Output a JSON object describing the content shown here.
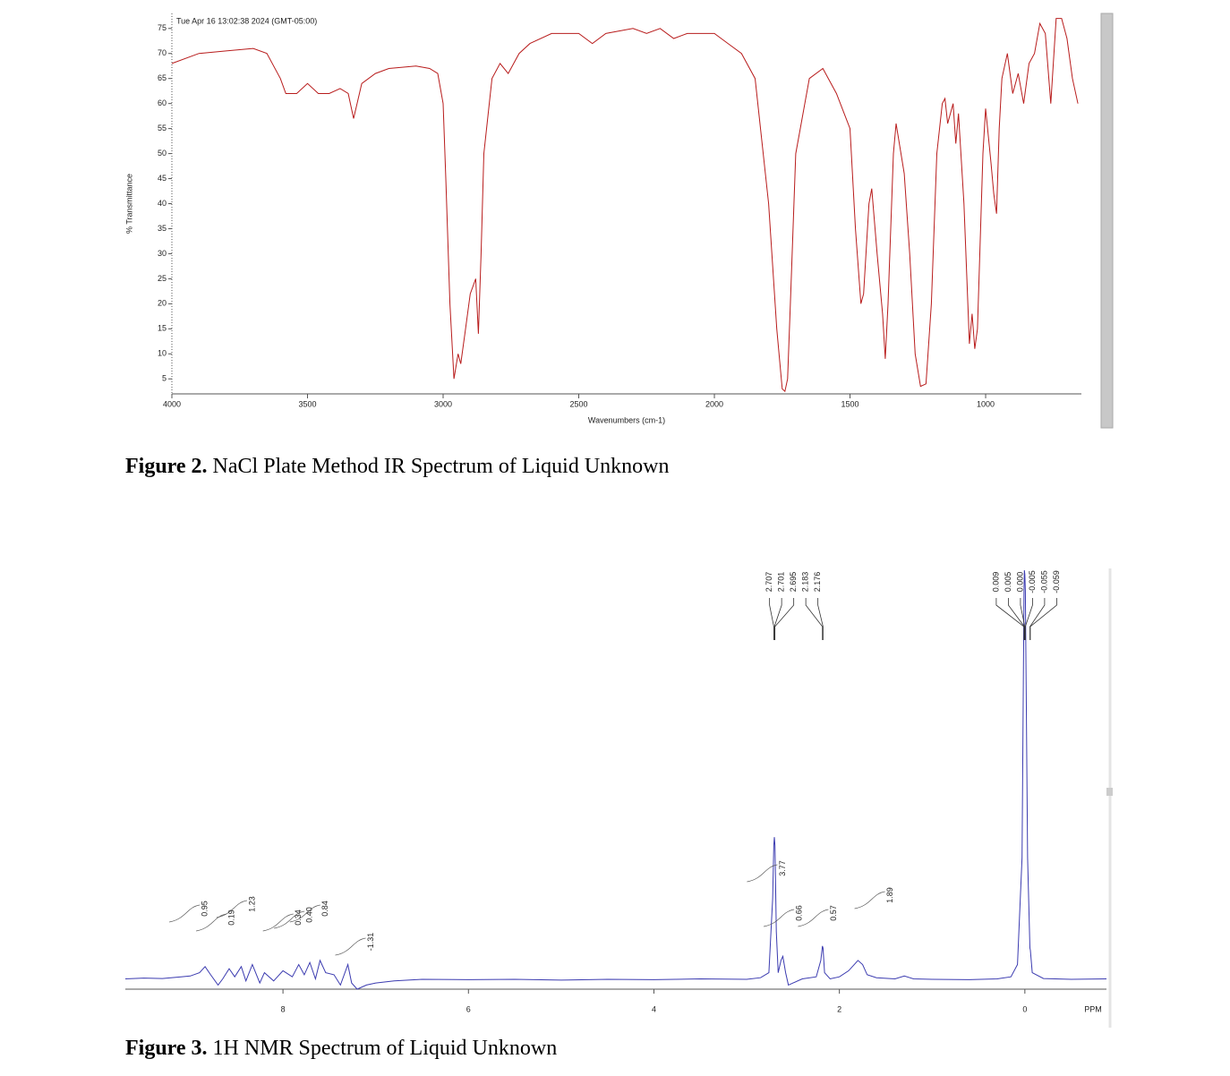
{
  "chart_data": [
    {
      "type": "line",
      "annotation": "Tue Apr 16 13:02:38 2024 (GMT-05:00)",
      "xlabel": "Wavenumbers (cm-1)",
      "ylabel": "% Transmittance",
      "xlim": [
        4000,
        647
      ],
      "ylim": [
        2,
        78
      ],
      "xticks": [
        4000,
        3500,
        3000,
        2500,
        2000,
        1500,
        1000
      ],
      "yticks": [
        5,
        10,
        15,
        20,
        25,
        30,
        35,
        40,
        45,
        50,
        55,
        60,
        65,
        70,
        75
      ],
      "color": "#b81c1c",
      "x": [
        4000,
        3900,
        3800,
        3700,
        3650,
        3600,
        3580,
        3540,
        3500,
        3460,
        3420,
        3380,
        3350,
        3330,
        3300,
        3250,
        3200,
        3100,
        3050,
        3020,
        3000,
        2990,
        2975,
        2960,
        2945,
        2935,
        2920,
        2900,
        2880,
        2870,
        2860,
        2850,
        2820,
        2790,
        2760,
        2720,
        2680,
        2600,
        2500,
        2450,
        2400,
        2300,
        2250,
        2200,
        2150,
        2100,
        2050,
        2000,
        1950,
        1900,
        1850,
        1800,
        1770,
        1750,
        1740,
        1730,
        1720,
        1700,
        1680,
        1650,
        1600,
        1550,
        1500,
        1480,
        1460,
        1450,
        1430,
        1420,
        1400,
        1380,
        1370,
        1360,
        1340,
        1330,
        1300,
        1280,
        1260,
        1240,
        1220,
        1200,
        1180,
        1160,
        1150,
        1140,
        1120,
        1110,
        1100,
        1080,
        1060,
        1050,
        1040,
        1030,
        1010,
        1000,
        980,
        970,
        960,
        950,
        940,
        920,
        900,
        880,
        860,
        840,
        820,
        800,
        780,
        760,
        740,
        720,
        700,
        680,
        660
      ],
      "values": [
        68,
        70,
        70.5,
        71,
        70,
        65,
        62,
        62,
        64,
        62,
        62,
        63,
        62,
        57,
        64,
        66,
        67,
        67.5,
        67,
        66,
        60,
        45,
        20,
        5,
        10,
        8,
        14,
        22,
        25,
        14,
        30,
        50,
        65,
        68,
        66,
        70,
        72,
        74,
        74,
        72,
        74,
        75,
        74,
        75,
        73,
        74,
        74,
        74,
        72,
        70,
        65,
        40,
        15,
        3,
        2.5,
        5,
        20,
        50,
        56,
        65,
        67,
        62,
        55,
        35,
        20,
        22,
        40,
        43,
        30,
        18,
        9,
        20,
        50,
        56,
        46,
        30,
        10,
        3.5,
        4,
        20,
        50,
        60,
        61,
        56,
        60,
        52,
        58,
        40,
        12,
        18,
        11,
        15,
        50,
        59,
        48,
        42,
        38,
        55,
        65,
        70,
        62,
        66,
        60,
        68,
        70,
        76,
        74,
        60,
        77,
        77,
        73,
        65,
        60
      ]
    },
    {
      "type": "line",
      "xlabel": "PPM",
      "xlim": [
        9.7,
        -0.88
      ],
      "ylim": [
        -0.02,
        1.0
      ],
      "xticks": [
        8,
        6,
        4,
        2,
        0
      ],
      "color": "#3b3bb0",
      "x": [
        9.7,
        9.5,
        9.3,
        9.1,
        9.0,
        8.9,
        8.84,
        8.78,
        8.7,
        8.65,
        8.58,
        8.52,
        8.45,
        8.4,
        8.33,
        8.25,
        8.2,
        8.1,
        8.0,
        7.9,
        7.83,
        7.77,
        7.71,
        7.65,
        7.6,
        7.54,
        7.45,
        7.38,
        7.3,
        7.26,
        7.2,
        7.1,
        7.0,
        6.8,
        6.5,
        6.0,
        5.5,
        5.0,
        4.5,
        4.0,
        3.5,
        3.0,
        2.85,
        2.76,
        2.72,
        2.707,
        2.701,
        2.695,
        2.68,
        2.66,
        2.63,
        2.61,
        2.58,
        2.55,
        2.5,
        2.4,
        2.25,
        2.2,
        2.183,
        2.176,
        2.16,
        2.1,
        2.0,
        1.9,
        1.8,
        1.75,
        1.7,
        1.6,
        1.4,
        1.3,
        1.2,
        1.0,
        0.6,
        0.3,
        0.15,
        0.08,
        0.03,
        0.009,
        0.005,
        0.0,
        -0.005,
        -0.03,
        -0.055,
        -0.059,
        -0.08,
        -0.2,
        -0.5,
        -0.88
      ],
      "values": [
        0.005,
        0.007,
        0.006,
        0.01,
        0.012,
        0.02,
        0.035,
        0.015,
        -0.01,
        0.005,
        0.03,
        0.01,
        0.035,
        0.0,
        0.04,
        -0.005,
        0.02,
        0.0,
        0.025,
        0.01,
        0.04,
        0.015,
        0.045,
        0.005,
        0.05,
        0.02,
        0.015,
        -0.01,
        0.04,
        -0.005,
        -0.02,
        -0.01,
        -0.005,
        0.0,
        0.004,
        0.003,
        0.004,
        0.002,
        0.004,
        0.003,
        0.005,
        0.004,
        0.008,
        0.02,
        0.2,
        0.33,
        0.35,
        0.33,
        0.12,
        0.02,
        0.05,
        0.06,
        0.02,
        -0.01,
        -0.005,
        0.005,
        0.01,
        0.05,
        0.085,
        0.08,
        0.02,
        0.005,
        0.01,
        0.025,
        0.05,
        0.04,
        0.015,
        0.008,
        0.005,
        0.012,
        0.005,
        0.004,
        0.003,
        0.005,
        0.01,
        0.04,
        0.3,
        0.95,
        1.0,
        0.99,
        0.95,
        0.3,
        0.08,
        0.075,
        0.02,
        0.006,
        0.004,
        0.005
      ],
      "peak_labels": [
        2.707,
        2.701,
        2.695,
        2.183,
        2.176,
        0.009,
        0.005,
        {
          "value": 0,
          "label": "0.000"
        },
        -0.005,
        -0.055,
        -0.059
      ],
      "integrals": {
        "x": [
          8.84,
          8.55,
          8.33,
          7.83,
          7.71,
          7.54,
          7.05,
          2.61,
          2.43,
          2.06,
          1.45
        ],
        "values": [
          0.95,
          0.19,
          1.23,
          0.34,
          0.4,
          0.84,
          -1.31,
          3.77,
          0.66,
          0.57,
          1.89
        ],
        "value_labels": [
          "0.95",
          "0.19",
          "1.23",
          "0.34",
          "0.40",
          "0.84",
          "-1.31",
          "3.77",
          "0.66",
          "0.57",
          "1.89"
        ]
      }
    }
  ],
  "captions": [
    {
      "label": "Figure 2.",
      "text": "NaCl Plate Method IR Spectrum of Liquid Unknown"
    },
    {
      "label": "Figure 3.",
      "text": "1H NMR Spectrum of Liquid Unknown"
    }
  ]
}
